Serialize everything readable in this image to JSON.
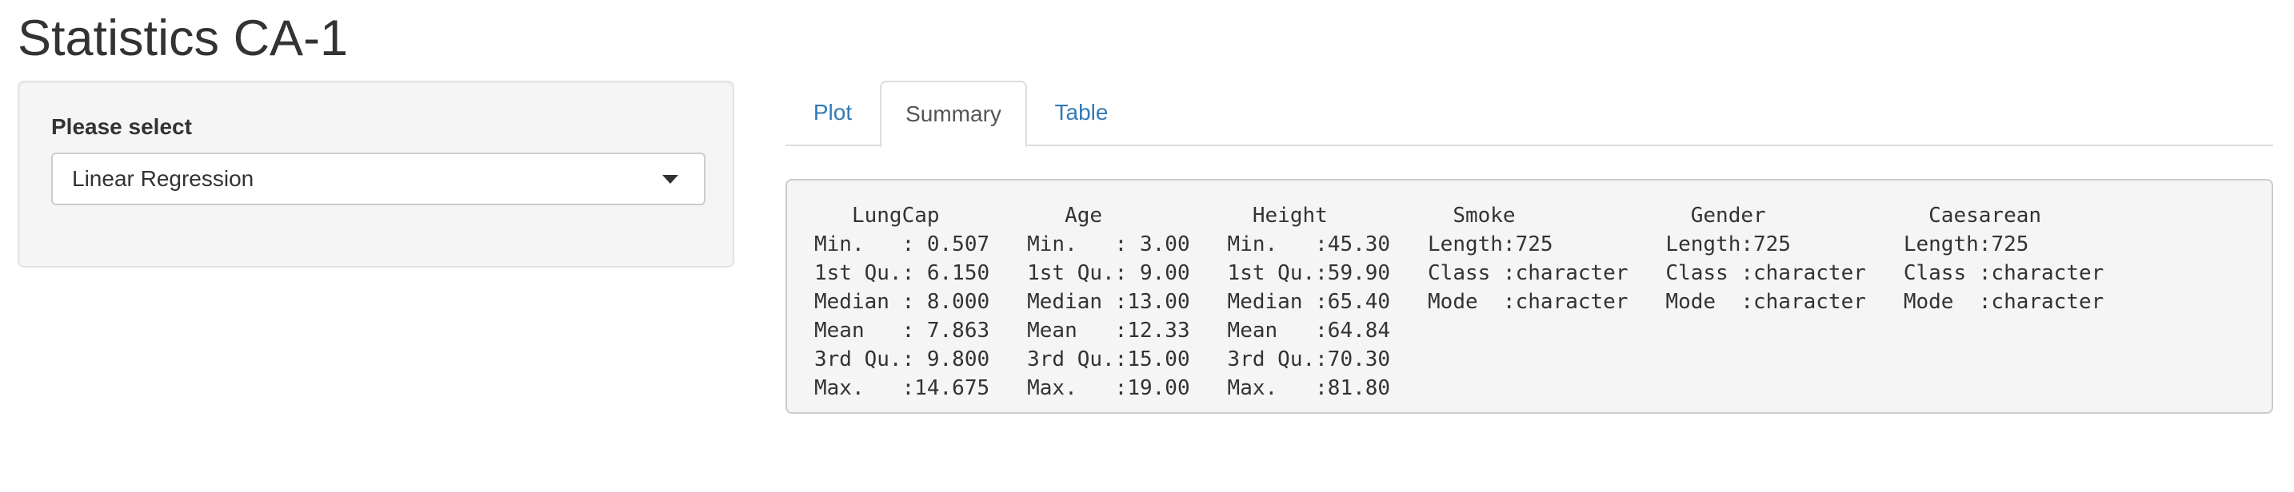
{
  "page": {
    "title": "Statistics CA-1"
  },
  "sidebar": {
    "select_label": "Please select",
    "select_value": "Linear Regression"
  },
  "tabs": [
    {
      "label": "Plot",
      "active": false
    },
    {
      "label": "Summary",
      "active": true
    },
    {
      "label": "Table",
      "active": false
    }
  ],
  "summary": {
    "lines": [
      "   LungCap          Age            Height          Smoke              Gender             Caesarean        ",
      "Min.   : 0.507   Min.   : 3.00   Min.   :45.30   Length:725         Length:725         Length:725        ",
      "1st Qu.: 6.150   1st Qu.: 9.00   1st Qu.:59.90   Class :character   Class :character   Class :character  ",
      "Median : 8.000   Median :13.00   Median :65.40   Mode  :character   Mode  :character   Mode  :character  ",
      "Mean   : 7.863   Mean   :12.33   Mean   :64.84                                                          ",
      "3rd Qu.: 9.800   3rd Qu.:15.00   3rd Qu.:70.30                                                          ",
      "Max.   :14.675   Max.   :19.00   Max.   :81.80                                                          "
    ]
  },
  "colors": {
    "link": "#337ab7",
    "text": "#333333",
    "panel_bg": "#f5f5f5"
  }
}
